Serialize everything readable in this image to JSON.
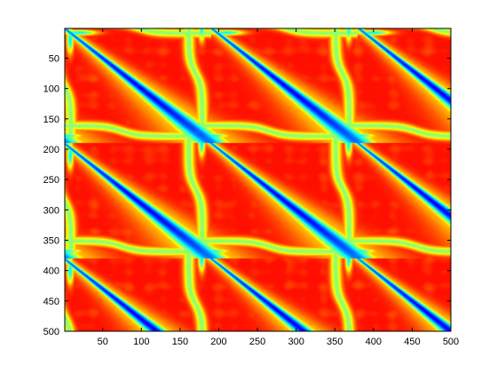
{
  "chart_data": {
    "type": "heatmap",
    "title": "",
    "xlabel": "",
    "ylabel": "",
    "xlim": [
      1,
      500
    ],
    "ylim": [
      1,
      500
    ],
    "y_direction": "reversed",
    "grid": false,
    "colormap": "jet",
    "matrix_size": [
      500,
      500
    ],
    "x_ticks": [
      50,
      100,
      150,
      200,
      250,
      300,
      350,
      400,
      450,
      500
    ],
    "x_tick_labels": [
      "50",
      "100",
      "150",
      "200",
      "250",
      "300",
      "350",
      "400",
      "450",
      "500"
    ],
    "y_ticks": [
      50,
      100,
      150,
      200,
      250,
      300,
      350,
      400,
      450,
      500
    ],
    "y_tick_labels": [
      "50",
      "100",
      "150",
      "200",
      "250",
      "300",
      "350",
      "400",
      "450",
      "500"
    ],
    "period": 190,
    "band_centers": [
      0,
      170,
      360
    ]
  },
  "colors": {
    "axis": "#000000",
    "background": "#ffffff"
  }
}
